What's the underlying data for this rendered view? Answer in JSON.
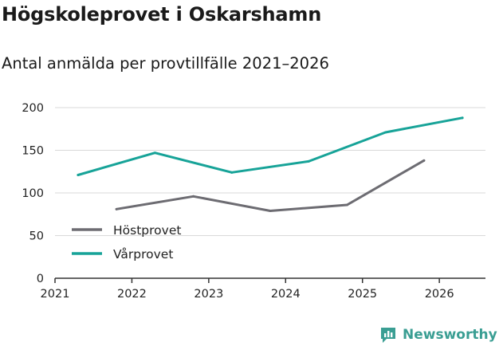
{
  "chart_data": {
    "type": "line",
    "title": "Högskoleprovet i Oskarshamn",
    "subtitle": "Antal anmälda per provtillfälle 2021–2026",
    "xlabel": "",
    "ylabel": "",
    "xlim": [
      2021,
      2026.6
    ],
    "ylim": [
      0,
      200
    ],
    "x_ticks": [
      2021,
      2022,
      2023,
      2024,
      2025,
      2026
    ],
    "x_tick_labels": [
      "2021",
      "2022",
      "2023",
      "2024",
      "2025",
      "2026"
    ],
    "y_ticks": [
      0,
      50,
      100,
      150,
      200
    ],
    "y_tick_labels": [
      "0",
      "50",
      "100",
      "150",
      "200"
    ],
    "grid": "horizontal",
    "legend_position": "bottom-left",
    "series": [
      {
        "name": "Höstprovet",
        "color": "#6d6c72",
        "x": [
          2021.8,
          2022.8,
          2023.8,
          2024.8,
          2025.8
        ],
        "y": [
          81,
          96,
          79,
          86,
          138
        ]
      },
      {
        "name": "Vårprovet",
        "color": "#17a398",
        "x": [
          2021.3,
          2022.3,
          2023.3,
          2024.3,
          2025.3,
          2026.3
        ],
        "y": [
          121,
          147,
          124,
          137,
          171,
          188
        ]
      }
    ]
  },
  "branding": {
    "name": "Newsworthy",
    "icon": "newsworthy-logo-icon",
    "color": "#3a9e93"
  }
}
